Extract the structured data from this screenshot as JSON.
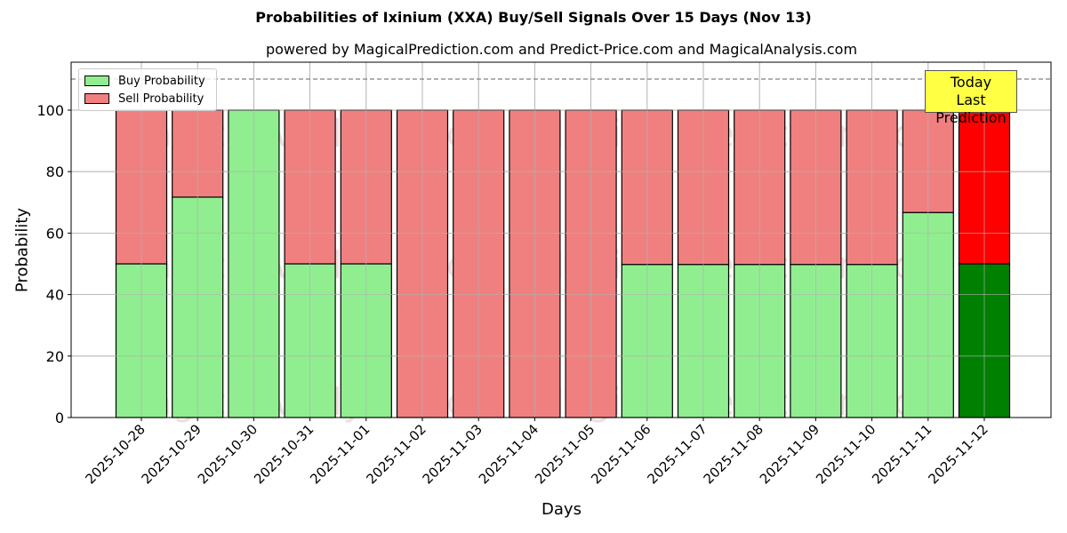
{
  "header": {
    "title": "Probabilities of Ixinium (XXA) Buy/Sell Signals Over 15 Days (Nov 13)",
    "subtitle": "powered by MagicalPrediction.com and Predict-Price.com and MagicalAnalysis.com"
  },
  "legend": {
    "buy_label": "Buy Probability",
    "sell_label": "Sell Probability"
  },
  "annotation": {
    "line1": "Today",
    "line2": "Last Prediction"
  },
  "axes": {
    "xlabel": "Days",
    "ylabel": "Probability"
  },
  "watermark": {
    "text1": "MagicalAnalysis.com",
    "text2": "MagicalPrediction.com"
  },
  "colors": {
    "buy": "#90ee90",
    "sell": "#f08080",
    "buy_today": "#008000",
    "sell_today": "#ff0000",
    "annotation_bg": "#ffff44",
    "threshold_line": "#808080"
  },
  "chart_data": {
    "type": "bar",
    "stacked": true,
    "title": "Probabilities of Ixinium (XXA) Buy/Sell Signals Over 15 Days (Nov 13)",
    "subtitle": "powered by MagicalPrediction.com and Predict-Price.com and MagicalAnalysis.com",
    "xlabel": "Days",
    "ylabel": "Probability",
    "ylim": [
      0,
      115
    ],
    "yticks": [
      0,
      20,
      40,
      60,
      80,
      100
    ],
    "grid": true,
    "legend_position": "upper left",
    "threshold_line": 110,
    "categories": [
      "2025-10-28",
      "2025-10-29",
      "2025-10-30",
      "2025-10-31",
      "2025-11-01",
      "2025-11-02",
      "2025-11-03",
      "2025-11-04",
      "2025-11-05",
      "2025-11-06",
      "2025-11-07",
      "2025-11-08",
      "2025-11-09",
      "2025-11-10",
      "2025-11-11",
      "2025-11-12"
    ],
    "series": [
      {
        "name": "Buy Probability",
        "values": [
          50,
          71.7,
          100,
          50,
          50,
          0,
          0,
          0,
          0,
          49.8,
          49.8,
          49.8,
          49.8,
          49.8,
          66.7,
          50
        ]
      },
      {
        "name": "Sell Probability",
        "values": [
          50,
          28.3,
          0,
          50,
          50,
          100,
          100,
          100,
          100,
          50.2,
          50.2,
          50.2,
          50.2,
          50.2,
          33.3,
          50
        ]
      }
    ],
    "annotations": [
      {
        "text": "Today\nLast Prediction",
        "x": "2025-11-12"
      }
    ]
  }
}
